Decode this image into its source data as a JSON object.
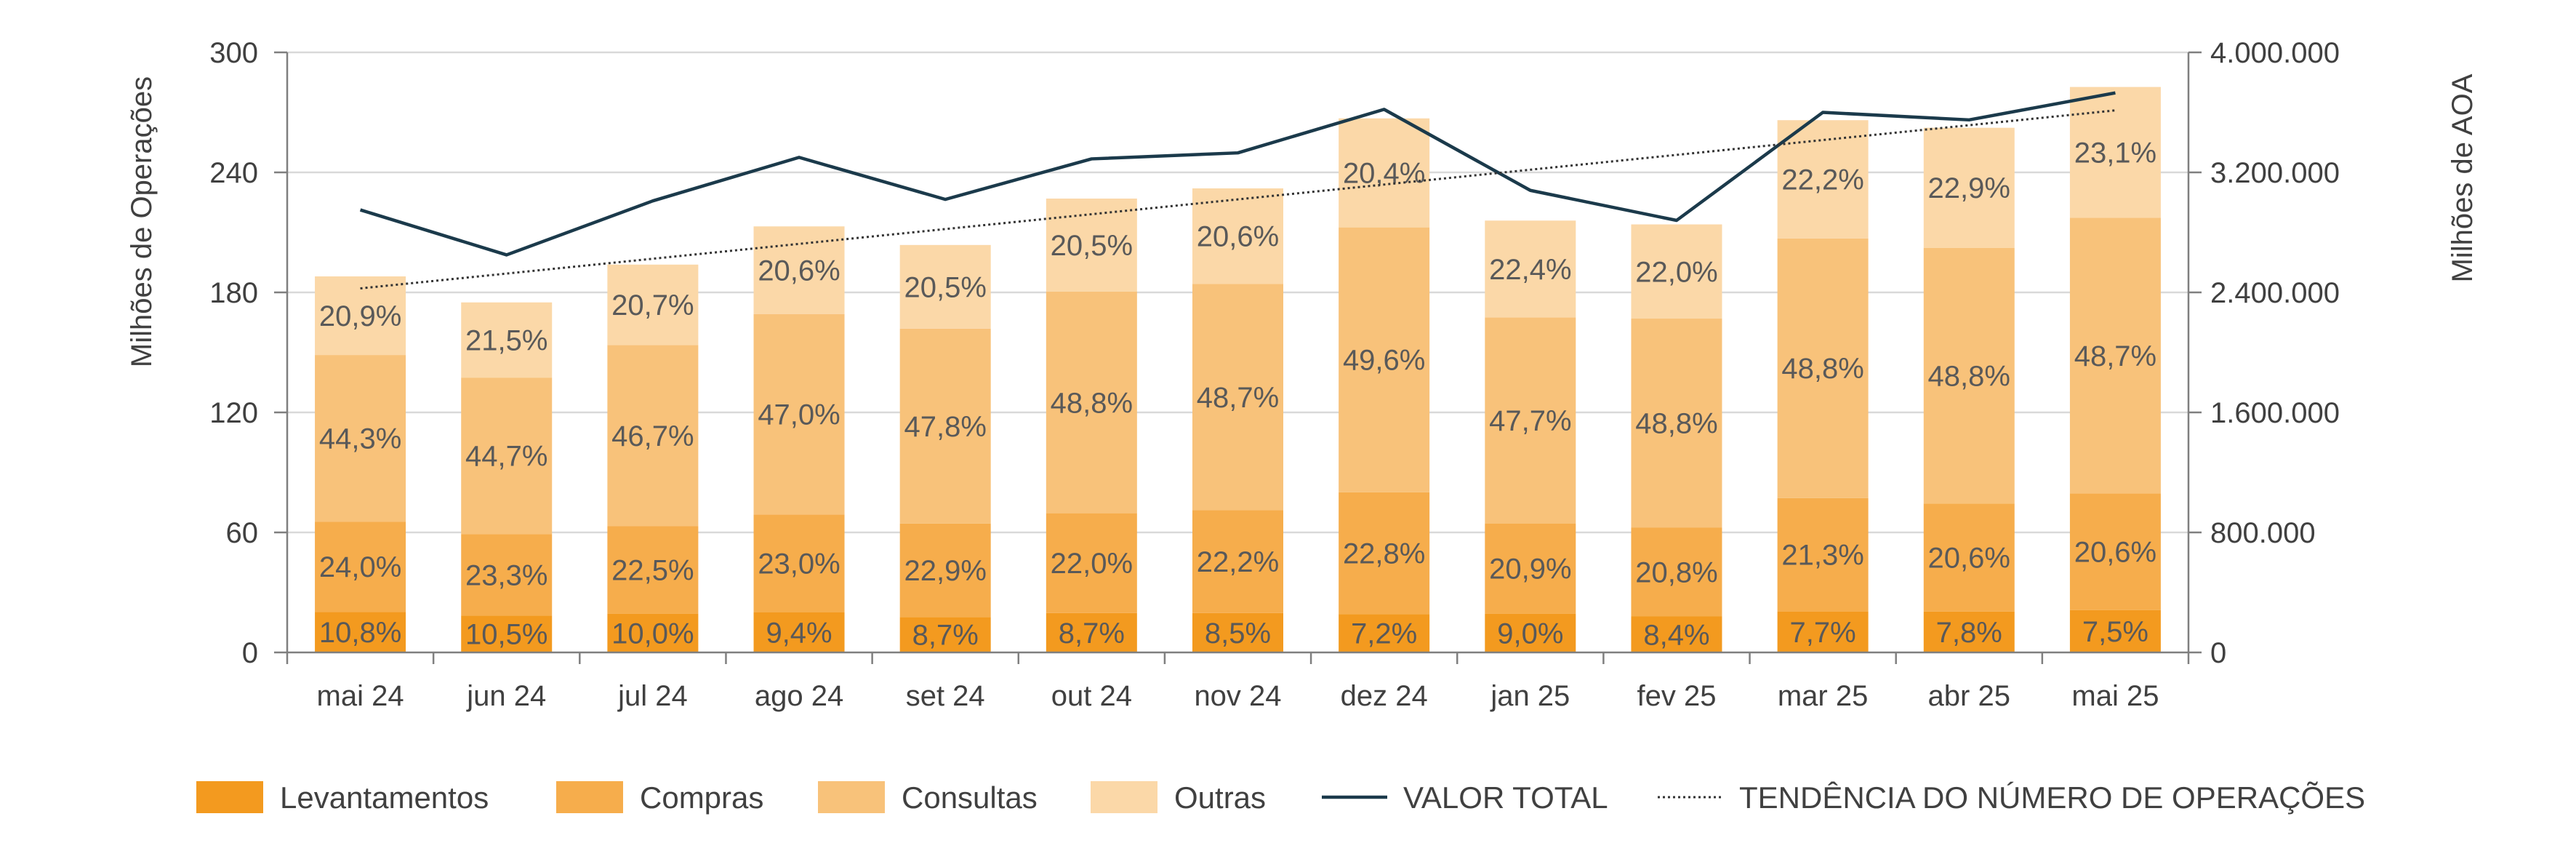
{
  "chart_data": {
    "type": "bar",
    "stacked": true,
    "categories": [
      "mai 24",
      "jun 24",
      "jul 24",
      "ago 24",
      "set 24",
      "out 24",
      "nov 24",
      "dez 24",
      "jan 25",
      "fev 25",
      "mar 25",
      "abr 25",
      "mai 25"
    ],
    "totals": [
      188,
      175,
      194,
      213,
      204,
      227,
      232,
      267,
      216,
      214,
      266,
      262,
      283
    ],
    "series": [
      {
        "name": "Levantamentos",
        "color": "#f39a1f",
        "shares": [
          "10,8%",
          "10,5%",
          "10,0%",
          "9,4%",
          "8,7%",
          "8,7%",
          "8,5%",
          "7,2%",
          "9,0%",
          "8,4%",
          "7,7%",
          "7,8%",
          "7,5%"
        ],
        "values": [
          20.3,
          18.4,
          19.4,
          20.0,
          17.7,
          19.7,
          19.7,
          19.2,
          19.4,
          18.0,
          20.5,
          20.4,
          21.2
        ]
      },
      {
        "name": "Compras",
        "color": "#f6ad4c",
        "shares": [
          "24,0%",
          "23,3%",
          "22,5%",
          "23,0%",
          "22,9%",
          "22,0%",
          "22,2%",
          "22,8%",
          "20,9%",
          "20,8%",
          "21,3%",
          "20,6%",
          "20,6%"
        ],
        "values": [
          45.1,
          40.8,
          43.7,
          49.0,
          46.7,
          49.9,
          51.5,
          60.9,
          45.1,
          44.5,
          56.7,
          54.0,
          58.3
        ]
      },
      {
        "name": "Consultas",
        "color": "#f8c27a",
        "shares": [
          "44,3%",
          "44,7%",
          "46,7%",
          "47,0%",
          "47,8%",
          "48,8%",
          "48,7%",
          "49,6%",
          "47,7%",
          "48,8%",
          "48,8%",
          "48,8%",
          "48,7%"
        ],
        "values": [
          83.3,
          78.2,
          90.6,
          100.1,
          97.5,
          110.8,
          113.0,
          132.4,
          103.0,
          104.4,
          129.8,
          127.9,
          137.8
        ]
      },
      {
        "name": "Outras",
        "color": "#fbd8a8",
        "shares": [
          "20,9%",
          "21,5%",
          "20,7%",
          "20,6%",
          "20,5%",
          "20,5%",
          "20,6%",
          "20,4%",
          "22,4%",
          "22,0%",
          "22,2%",
          "22,9%",
          "23,1%"
        ],
        "values": [
          39.3,
          37.6,
          40.2,
          43.9,
          41.8,
          46.5,
          47.8,
          54.5,
          48.4,
          47.1,
          59.1,
          60.0,
          65.4
        ]
      }
    ],
    "line": {
      "name": "VALOR TOTAL",
      "color": "#1b3a4b",
      "axis": "right",
      "values": [
        2950000,
        2650000,
        3010000,
        3300000,
        3020000,
        3290000,
        3330000,
        3620000,
        3080000,
        2880000,
        3600000,
        3550000,
        3730000
      ]
    },
    "trend": {
      "name": "TENDÊNCIA DO NÚMERO DE OPERAÇÕES",
      "color": "#333333",
      "axis": "left",
      "start": 182,
      "end": 271
    },
    "y_left": {
      "label": "Milhões de Operações",
      "min": 0,
      "max": 300,
      "ticks": [
        "0",
        "60",
        "120",
        "180",
        "240",
        "300"
      ]
    },
    "y_right": {
      "label": "Milhões de AOA",
      "min": 0,
      "max": 4000000,
      "ticks": [
        "0",
        "800.000",
        "1.600.000",
        "2.400.000",
        "3.200.000",
        "4.000.000"
      ]
    },
    "grid": true,
    "legend_position": "bottom"
  }
}
